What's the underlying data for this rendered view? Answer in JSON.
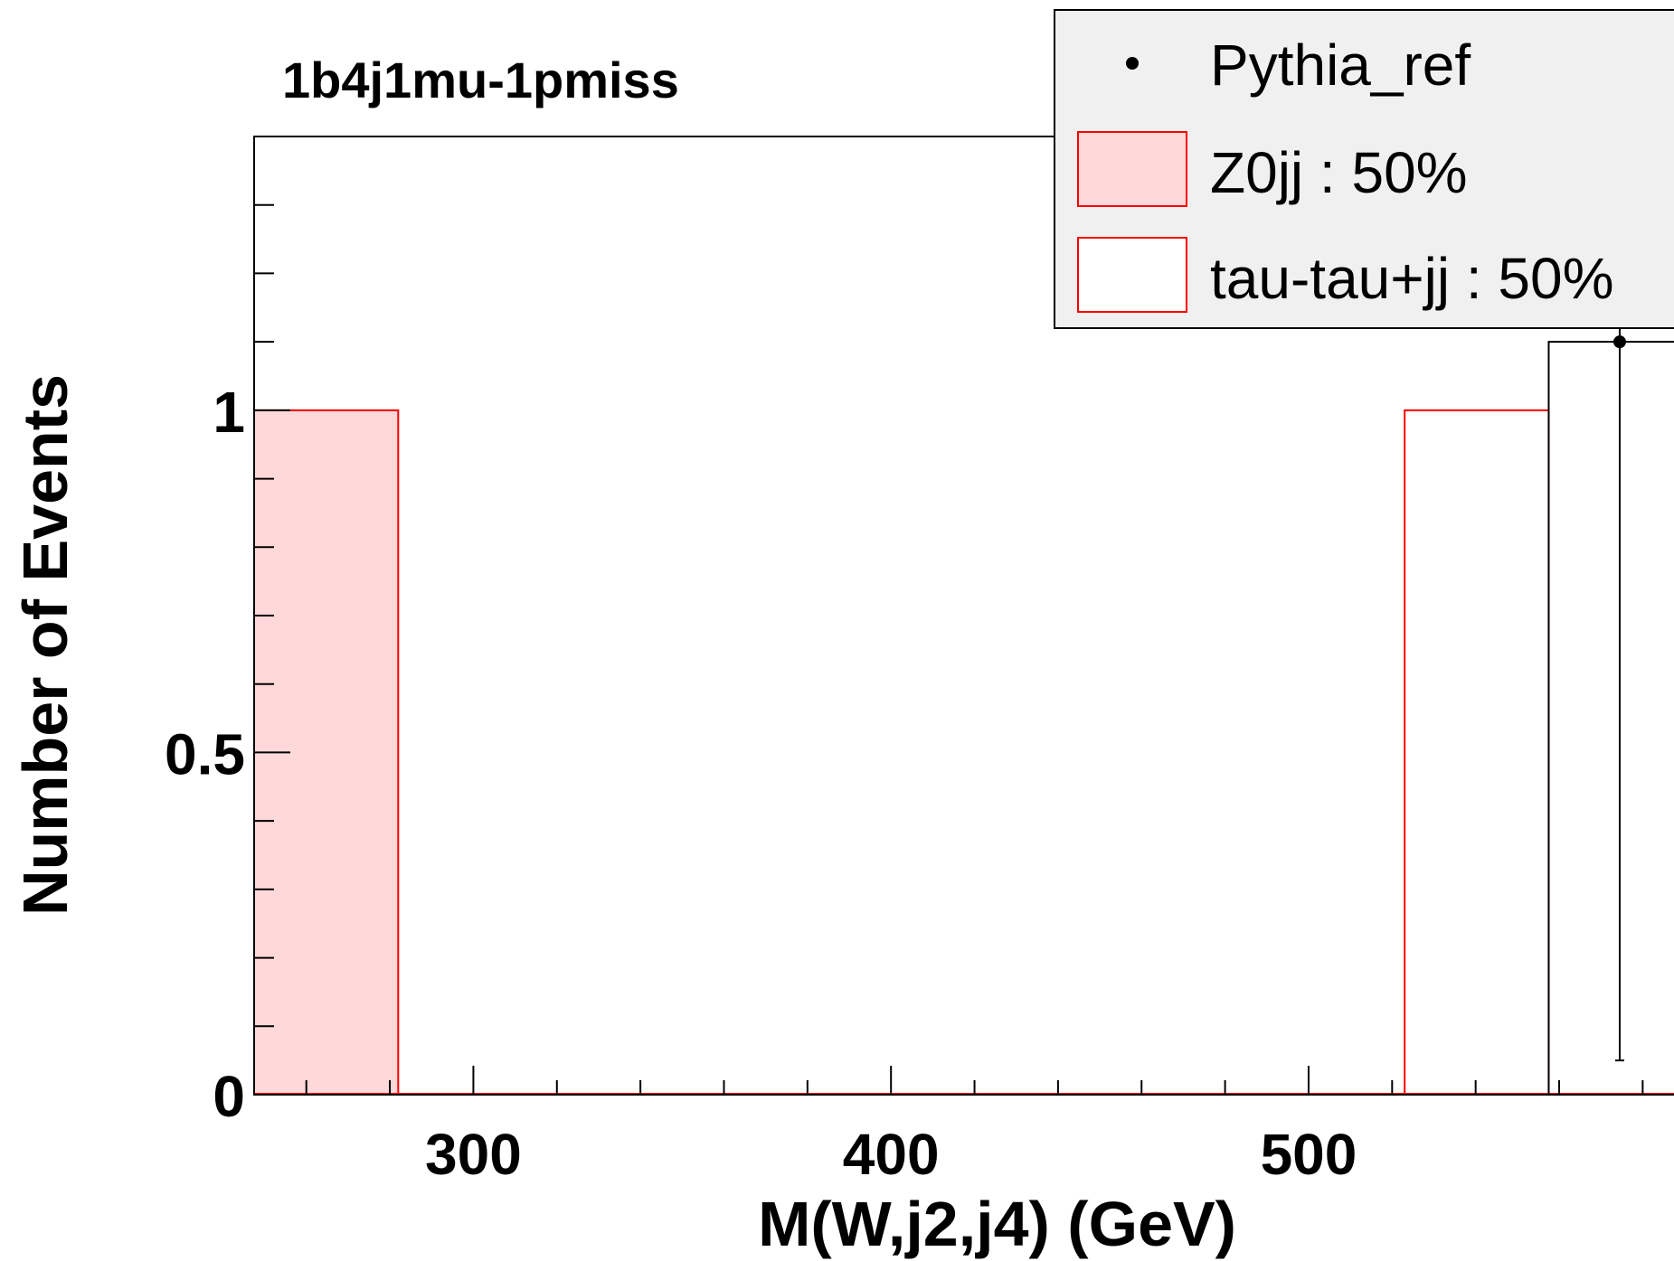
{
  "chart_data": {
    "type": "bar",
    "title": "1b4j1mu-1pmiss",
    "xlabel": "M(W,j2,j4) (GeV)",
    "ylabel": "Number of Events",
    "xlim": [
      247.5,
      587.5
    ],
    "ylim": [
      0,
      1.4
    ],
    "x_ticks": [
      300,
      400,
      500
    ],
    "y_ticks": [
      0,
      0.5,
      1
    ],
    "x_tick_labels": [
      "300",
      "400",
      "500"
    ],
    "y_tick_labels": [
      "0",
      "0.5",
      "1"
    ],
    "bin_width": 34.5,
    "legend_position": "top-right",
    "series": [
      {
        "name": "Z0jj : 50%",
        "style": "filled-histogram",
        "fill": "#ffd9d9",
        "line": "#ff0000",
        "bins": [
          {
            "x0": 247.5,
            "x1": 282.0,
            "value": 1
          }
        ]
      },
      {
        "name": "tau-tau+jj : 50%",
        "style": "hollow-histogram",
        "fill": "#ffffff",
        "line": "#ff0000",
        "bins": [
          {
            "x0": 523.0,
            "x1": 557.5,
            "value": 1
          }
        ]
      },
      {
        "name": "Pythia_ref",
        "style": "points",
        "color": "#000000",
        "points": [
          {
            "x": 574.5,
            "y": 1.1,
            "yerr_low": 1.05,
            "yerr_high": 1.05,
            "bin_x0": 557.5
          }
        ]
      }
    ],
    "legend": {
      "entries": [
        "Pythia_ref",
        "Z0jj : 50%",
        "tau-tau+jj : 50%"
      ],
      "bg": "#f0f0f0"
    }
  }
}
